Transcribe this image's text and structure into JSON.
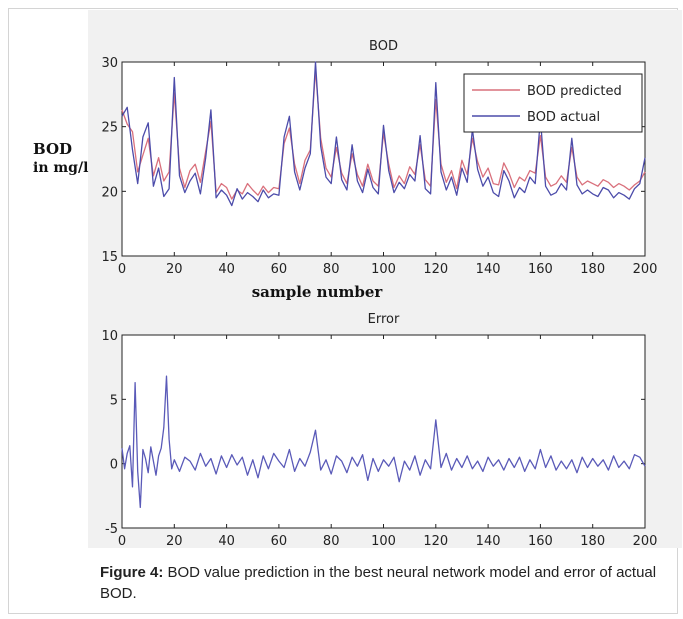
{
  "caption": {
    "label": "Figure 4:",
    "text": " BOD value prediction in the best neural network model and error of actual BOD."
  },
  "chart_data": [
    {
      "type": "line",
      "title": "BOD",
      "ylabel_line1": "BOD",
      "ylabel_line2": "in mg/l",
      "xlabel": "sample number",
      "xlim": [
        0,
        200
      ],
      "ylim": [
        15,
        30
      ],
      "xticks": [
        "0",
        "20",
        "40",
        "60",
        "80",
        "100",
        "120",
        "140",
        "160",
        "180",
        "200"
      ],
      "yticks": [
        "15",
        "20",
        "25",
        "30"
      ],
      "legend_position": "top-right",
      "series": [
        {
          "name": "BOD predicted",
          "color": "#d9707c",
          "x": [
            0,
            2,
            4,
            6,
            8,
            10,
            12,
            14,
            16,
            18,
            20,
            22,
            24,
            26,
            28,
            30,
            32,
            34,
            36,
            38,
            40,
            42,
            44,
            46,
            48,
            50,
            52,
            54,
            56,
            58,
            60,
            62,
            64,
            66,
            68,
            70,
            72,
            74,
            76,
            78,
            80,
            82,
            84,
            86,
            88,
            90,
            92,
            94,
            96,
            98,
            100,
            102,
            104,
            106,
            108,
            110,
            112,
            114,
            116,
            118,
            120,
            122,
            124,
            126,
            128,
            130,
            132,
            134,
            136,
            138,
            140,
            142,
            144,
            146,
            148,
            150,
            152,
            154,
            156,
            158,
            160,
            162,
            164,
            166,
            168,
            170,
            172,
            174,
            176,
            178,
            180,
            182,
            184,
            186,
            188,
            190,
            192,
            194,
            196,
            198,
            200
          ],
          "values": [
            26.3,
            25.2,
            24.6,
            21.5,
            22.8,
            24.1,
            21.2,
            22.6,
            20.8,
            21.5,
            27.6,
            21.8,
            20.3,
            21.6,
            22.1,
            20.7,
            23.1,
            25.4,
            19.9,
            20.6,
            20.3,
            19.4,
            20.1,
            19.8,
            20.6,
            20.1,
            19.7,
            20.4,
            19.9,
            20.3,
            20.2,
            23.7,
            24.9,
            22.1,
            20.6,
            22.4,
            23.2,
            29.4,
            24.1,
            21.8,
            21.1,
            23.4,
            21.4,
            20.6,
            22.9,
            21.3,
            20.4,
            22.1,
            20.8,
            20.4,
            24.5,
            22.1,
            20.3,
            21.2,
            20.6,
            21.9,
            21.3,
            23.6,
            20.9,
            20.4,
            27.1,
            22.1,
            20.7,
            21.6,
            20.2,
            22.4,
            21.3,
            24.1,
            22.3,
            21.1,
            21.8,
            20.6,
            20.5,
            22.2,
            21.4,
            20.3,
            21.1,
            20.8,
            21.6,
            21.4,
            24.3,
            21.1,
            20.4,
            20.6,
            21.2,
            20.7,
            23.4,
            21.1,
            20.5,
            20.8,
            20.6,
            20.4,
            20.9,
            20.7,
            20.3,
            20.6,
            20.4,
            20.1,
            20.5,
            20.8,
            21.5
          ]
        },
        {
          "name": "BOD actual",
          "color": "#4c4caa",
          "x": [
            0,
            2,
            4,
            6,
            8,
            10,
            12,
            14,
            16,
            18,
            20,
            22,
            24,
            26,
            28,
            30,
            32,
            34,
            36,
            38,
            40,
            42,
            44,
            46,
            48,
            50,
            52,
            54,
            56,
            58,
            60,
            62,
            64,
            66,
            68,
            70,
            72,
            74,
            76,
            78,
            80,
            82,
            84,
            86,
            88,
            90,
            92,
            94,
            96,
            98,
            100,
            102,
            104,
            106,
            108,
            110,
            112,
            114,
            116,
            118,
            120,
            122,
            124,
            126,
            128,
            130,
            132,
            134,
            136,
            138,
            140,
            142,
            144,
            146,
            148,
            150,
            152,
            154,
            156,
            158,
            160,
            162,
            164,
            166,
            168,
            170,
            172,
            174,
            176,
            178,
            180,
            182,
            184,
            186,
            188,
            190,
            192,
            194,
            196,
            198,
            200
          ],
          "values": [
            25.8,
            26.5,
            23.2,
            20.6,
            24.2,
            25.3,
            20.4,
            21.8,
            19.6,
            20.2,
            28.8,
            21.2,
            19.9,
            20.8,
            21.4,
            19.8,
            22.6,
            26.3,
            19.5,
            20.1,
            19.7,
            18.9,
            20.2,
            19.4,
            19.9,
            19.6,
            19.2,
            20.1,
            19.5,
            19.8,
            19.7,
            24.2,
            25.8,
            21.5,
            20.1,
            21.8,
            22.9,
            30.0,
            23.5,
            21.1,
            20.6,
            24.2,
            20.9,
            20.1,
            23.6,
            20.8,
            19.9,
            21.7,
            20.3,
            19.8,
            25.1,
            21.6,
            19.9,
            20.7,
            20.2,
            21.3,
            20.8,
            24.3,
            20.2,
            19.8,
            28.4,
            21.5,
            20.1,
            21.1,
            19.7,
            21.8,
            20.7,
            24.8,
            21.7,
            20.4,
            21.1,
            19.9,
            19.6,
            21.6,
            20.8,
            19.5,
            20.3,
            19.9,
            21.1,
            20.6,
            25.6,
            20.4,
            19.7,
            19.9,
            20.6,
            20.1,
            24.1,
            20.5,
            19.8,
            20.1,
            19.8,
            19.6,
            20.3,
            20.1,
            19.5,
            19.9,
            19.7,
            19.4,
            20.2,
            20.6,
            22.6
          ]
        }
      ]
    },
    {
      "type": "line",
      "title": "Error",
      "xlim": [
        0,
        200
      ],
      "ylim": [
        -5,
        10
      ],
      "xticks": [
        "0",
        "20",
        "40",
        "60",
        "80",
        "100",
        "120",
        "140",
        "160",
        "180",
        "200"
      ],
      "yticks": [
        "-5",
        "0",
        "5",
        "10"
      ],
      "series": [
        {
          "color": "#5a5ab8",
          "x": [
            0,
            1,
            2,
            3,
            4,
            5,
            6,
            7,
            8,
            9,
            10,
            11,
            12,
            13,
            14,
            15,
            16,
            17,
            18,
            19,
            20,
            22,
            24,
            26,
            28,
            30,
            32,
            34,
            36,
            38,
            40,
            42,
            44,
            46,
            48,
            50,
            52,
            54,
            56,
            58,
            60,
            62,
            64,
            66,
            68,
            70,
            72,
            74,
            76,
            78,
            80,
            82,
            84,
            86,
            88,
            90,
            92,
            94,
            96,
            98,
            100,
            102,
            104,
            106,
            108,
            110,
            112,
            114,
            116,
            118,
            120,
            122,
            124,
            126,
            128,
            130,
            132,
            134,
            136,
            138,
            140,
            142,
            144,
            146,
            148,
            150,
            152,
            154,
            156,
            158,
            160,
            162,
            164,
            166,
            168,
            170,
            172,
            174,
            176,
            178,
            180,
            182,
            184,
            186,
            188,
            190,
            192,
            194,
            196,
            198,
            200
          ],
          "values": [
            1.2,
            -0.4,
            0.8,
            1.4,
            -1.8,
            6.3,
            -0.6,
            -3.4,
            1.1,
            0.4,
            -0.7,
            1.3,
            0.2,
            -0.9,
            0.6,
            1.2,
            2.8,
            6.8,
            1.9,
            -0.4,
            0.3,
            -0.6,
            0.5,
            0.2,
            -0.5,
            0.8,
            -0.2,
            0.4,
            -0.8,
            0.6,
            -0.3,
            0.7,
            -0.1,
            0.5,
            -0.9,
            0.3,
            -1.1,
            0.6,
            -0.4,
            0.8,
            0.2,
            -0.3,
            1.1,
            -0.6,
            0.4,
            -0.2,
            0.9,
            2.6,
            -0.5,
            0.3,
            -0.8,
            0.6,
            0.2,
            -0.7,
            0.5,
            -0.2,
            0.7,
            -1.3,
            0.4,
            -0.6,
            0.3,
            -0.2,
            0.5,
            -1.4,
            0.2,
            -0.5,
            0.6,
            -0.9,
            0.3,
            -0.4,
            3.4,
            -0.3,
            0.8,
            -0.5,
            0.4,
            -0.3,
            0.6,
            -0.4,
            0.2,
            -0.6,
            0.5,
            -0.2,
            0.3,
            -0.5,
            0.4,
            -0.3,
            0.5,
            -0.6,
            0.3,
            -0.4,
            1.1,
            -0.3,
            0.6,
            -0.5,
            0.2,
            -0.4,
            0.3,
            -0.7,
            0.5,
            -0.3,
            0.4,
            -0.2,
            0.3,
            -0.5,
            0.6,
            -0.3,
            0.2,
            -0.4,
            0.7,
            0.5,
            -0.2
          ]
        }
      ]
    }
  ]
}
